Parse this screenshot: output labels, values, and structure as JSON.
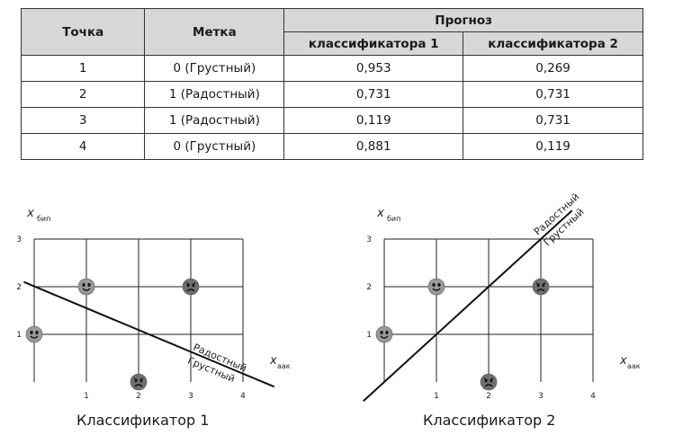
{
  "table": {
    "headers": {
      "point": "Точка",
      "label": "Метка",
      "forecast": "Прогноз",
      "classifier1": "классификатора 1",
      "classifier2": "классификатора 2"
    },
    "rows": [
      {
        "point": "1",
        "label": "0 (Грустный)",
        "c1": "0,953",
        "c2": "0,269"
      },
      {
        "point": "2",
        "label": "1 (Радостный)",
        "c1": "0,731",
        "c2": "0,731"
      },
      {
        "point": "3",
        "label": "1 (Радостный)",
        "c1": "0,119",
        "c2": "0,731"
      },
      {
        "point": "4",
        "label": "0 (Грустный)",
        "c1": "0,881",
        "c2": "0,119"
      }
    ]
  },
  "plots": [
    {
      "caption": "Классификатор 1",
      "x_axis": {
        "letter": "x",
        "sub": "аак",
        "ticks": [
          "1",
          "2",
          "3",
          "4"
        ]
      },
      "y_axis": {
        "letter": "x",
        "sub": "бип",
        "ticks": [
          "1",
          "2",
          "3"
        ]
      },
      "boundary": {
        "from": [
          -0.2,
          2.1
        ],
        "to": [
          4.6,
          -0.1
        ]
      },
      "region_labels": [
        "Радостный",
        "Грустный"
      ],
      "points": [
        {
          "x": 0,
          "y": 1,
          "mood": "happy"
        },
        {
          "x": 1,
          "y": 2,
          "mood": "happy"
        },
        {
          "x": 2,
          "y": 0,
          "mood": "sad"
        },
        {
          "x": 3,
          "y": 2,
          "mood": "sad"
        }
      ]
    },
    {
      "caption": "Классификатор 2",
      "x_axis": {
        "letter": "x",
        "sub": "аак",
        "ticks": [
          "1",
          "2",
          "3",
          "4"
        ]
      },
      "y_axis": {
        "letter": "x",
        "sub": "бип",
        "ticks": [
          "1",
          "2",
          "3"
        ]
      },
      "boundary": {
        "from": [
          -0.4,
          -0.4
        ],
        "to": [
          3.6,
          3.6
        ]
      },
      "region_labels": [
        "Радостный",
        "Грустный"
      ],
      "points": [
        {
          "x": 0,
          "y": 1,
          "mood": "happy"
        },
        {
          "x": 1,
          "y": 2,
          "mood": "happy"
        },
        {
          "x": 2,
          "y": 0,
          "mood": "sad"
        },
        {
          "x": 3,
          "y": 2,
          "mood": "sad"
        }
      ]
    }
  ]
}
